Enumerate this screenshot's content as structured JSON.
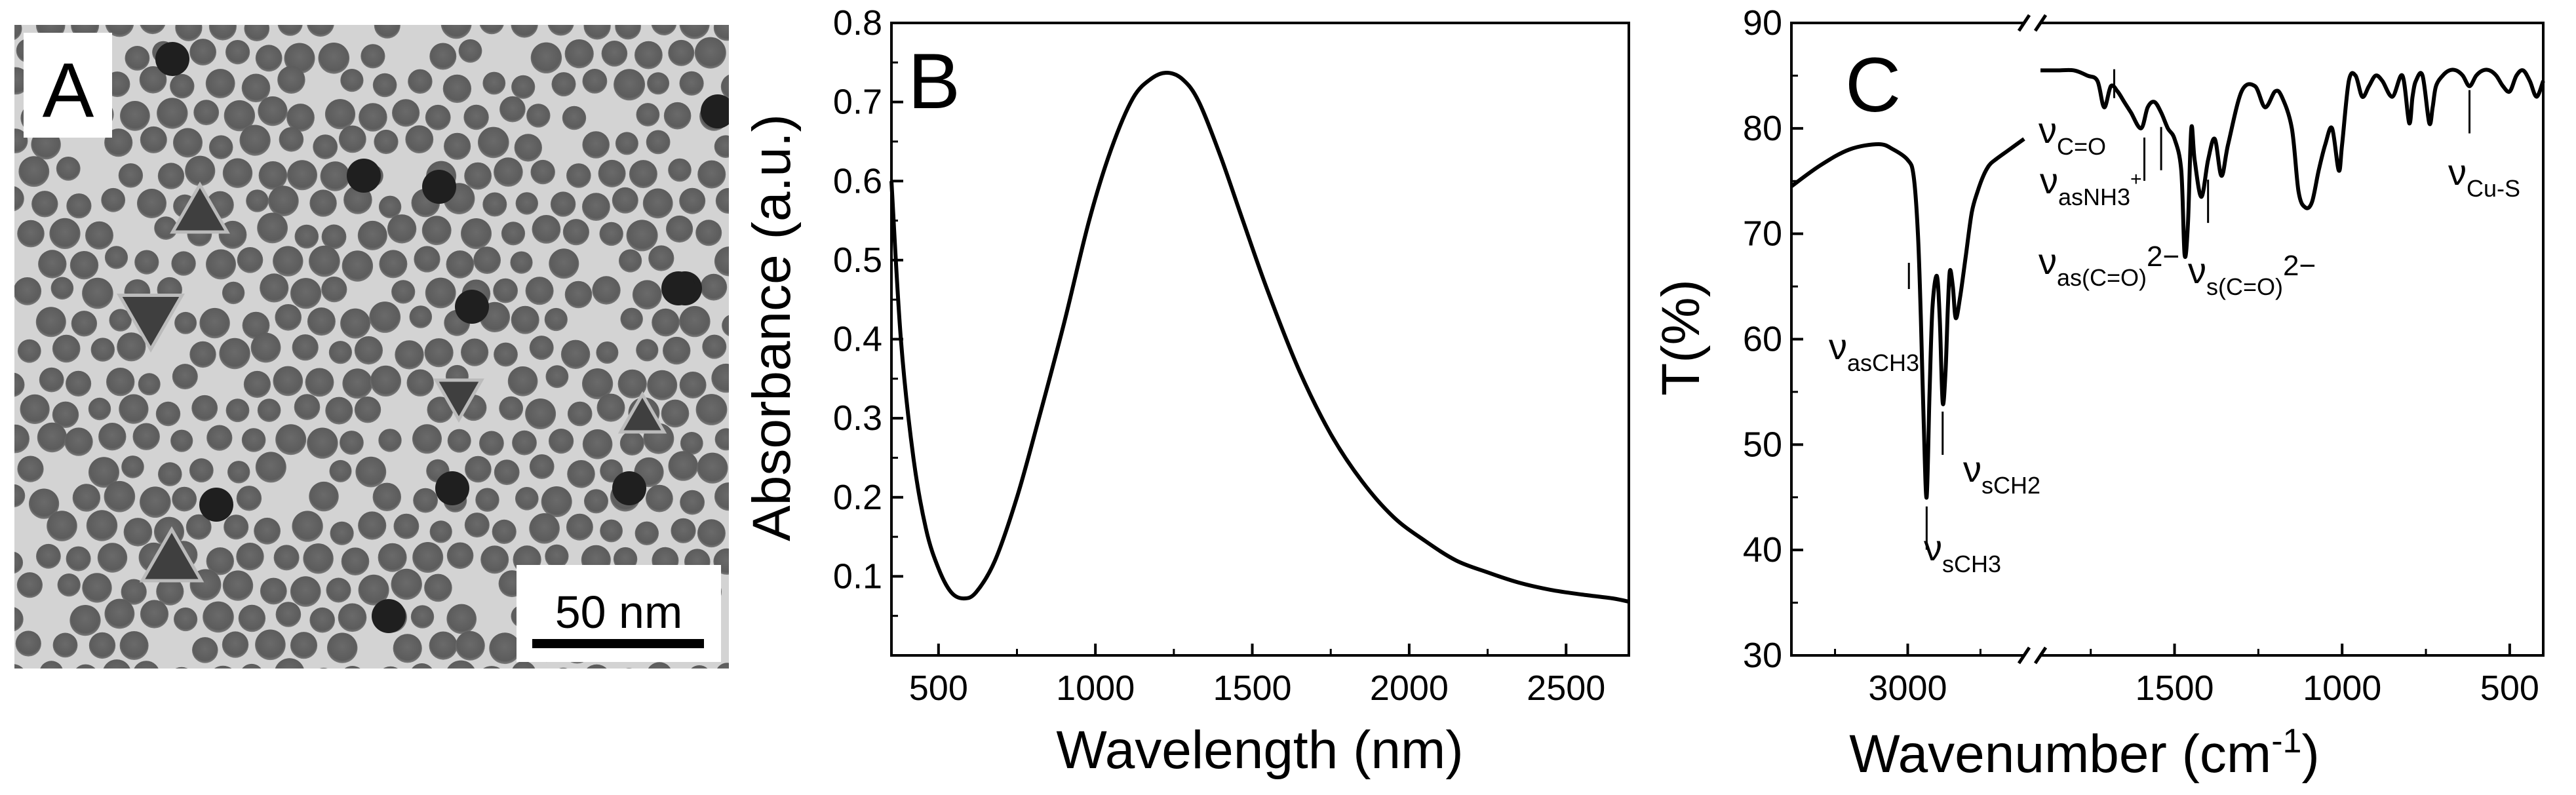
{
  "panels": {
    "a": {
      "label": "A",
      "scale_bar": "50 nm"
    },
    "b": {
      "label": "B"
    },
    "c": {
      "label": "C"
    }
  },
  "chart_data": [
    {
      "type": "line",
      "panel": "B",
      "title": "",
      "xlabel": "Wavelength (nm)",
      "ylabel": "Absorbance (a.u.)",
      "xlim": [
        350,
        2700
      ],
      "ylim": [
        0.0,
        0.8
      ],
      "xticks": [
        500,
        1000,
        1500,
        2000,
        2500
      ],
      "xtick_labels": [
        "500",
        "1000",
        "1500",
        "2000",
        "2500"
      ],
      "yticks": [
        0.1,
        0.2,
        0.3,
        0.4,
        0.5,
        0.6,
        0.7,
        0.8
      ],
      "ytick_labels": [
        "0.1",
        "0.2",
        "0.3",
        "0.4",
        "0.5",
        "0.6",
        "0.7",
        "0.8"
      ],
      "grid": false,
      "series": [
        {
          "name": "absorbance",
          "x": [
            350,
            380,
            420,
            460,
            500,
            540,
            580,
            620,
            680,
            750,
            820,
            900,
            980,
            1050,
            1120,
            1180,
            1230,
            1280,
            1330,
            1400,
            1470,
            1550,
            1650,
            1750,
            1850,
            1950,
            2050,
            2150,
            2250,
            2350,
            2450,
            2550,
            2650,
            2700
          ],
          "y": [
            0.6,
            0.4,
            0.25,
            0.16,
            0.11,
            0.08,
            0.072,
            0.08,
            0.12,
            0.2,
            0.3,
            0.42,
            0.55,
            0.64,
            0.705,
            0.73,
            0.737,
            0.728,
            0.7,
            0.63,
            0.55,
            0.46,
            0.36,
            0.28,
            0.22,
            0.175,
            0.145,
            0.12,
            0.105,
            0.092,
            0.083,
            0.077,
            0.072,
            0.068
          ]
        }
      ]
    },
    {
      "type": "line",
      "panel": "C",
      "title": "",
      "xlabel": "Wavenumber (cm-1)",
      "xlabel_main": "Wavenumber (cm",
      "xlabel_sup": "-1",
      "xlabel_close": ")",
      "ylabel": "T(%)",
      "ylim": [
        30,
        90
      ],
      "x_reversed": true,
      "axis_break": true,
      "yticks": [
        30,
        40,
        50,
        60,
        70,
        80,
        90
      ],
      "ytick_labels": [
        "30",
        "40",
        "50",
        "60",
        "70",
        "80",
        "90"
      ],
      "segments": [
        {
          "xlim": [
            3400,
            2600
          ],
          "xticks": [
            3000
          ],
          "xtick_labels": [
            "3000"
          ],
          "x": [
            3400,
            3300,
            3200,
            3100,
            3050,
            3000,
            2980,
            2965,
            2955,
            2945,
            2935,
            2925,
            2915,
            2900,
            2890,
            2880,
            2870,
            2862,
            2855,
            2845,
            2835,
            2820,
            2800,
            2780,
            2760,
            2740,
            2720,
            2700,
            2650,
            2600
          ],
          "y": [
            74.5,
            76.5,
            78.0,
            78.5,
            78.0,
            77.0,
            75.5,
            70.0,
            62.0,
            52.0,
            45.0,
            55.0,
            63.0,
            66.0,
            62.0,
            54.0,
            57.0,
            63.0,
            66.5,
            65.0,
            62.0,
            64.0,
            68.0,
            72.0,
            74.0,
            75.5,
            76.5,
            77.0,
            78.0,
            79.0
          ]
        },
        {
          "xlim": [
            1900,
            400
          ],
          "xticks": [
            1500,
            1000,
            500
          ],
          "xtick_labels": [
            "1500",
            "1000",
            "500"
          ],
          "x": [
            1900,
            1850,
            1800,
            1760,
            1730,
            1710,
            1690,
            1670,
            1650,
            1630,
            1600,
            1580,
            1560,
            1540,
            1520,
            1500,
            1480,
            1470,
            1460,
            1450,
            1440,
            1420,
            1400,
            1380,
            1360,
            1340,
            1300,
            1260,
            1230,
            1200,
            1180,
            1150,
            1130,
            1110,
            1090,
            1070,
            1050,
            1030,
            1010,
            1000,
            980,
            960,
            940,
            920,
            900,
            880,
            850,
            820,
            800,
            790,
            780,
            760,
            740,
            730,
            720,
            700,
            680,
            660,
            640,
            620,
            600,
            580,
            560,
            540,
            520,
            500,
            480,
            460,
            440,
            420,
            400
          ],
          "y": [
            85.5,
            85.5,
            85.5,
            85.0,
            84.5,
            82.0,
            84.0,
            83.5,
            82.5,
            81.5,
            80.0,
            82.0,
            82.5,
            81.5,
            80.0,
            79.0,
            76.0,
            68.0,
            71.0,
            80.0,
            77.0,
            73.5,
            77.0,
            79.0,
            75.5,
            78.5,
            83.5,
            84.0,
            82.0,
            83.5,
            83.0,
            80.0,
            74.0,
            72.5,
            73.0,
            76.0,
            78.5,
            80.0,
            76.0,
            78.5,
            84.5,
            85.0,
            83.0,
            84.0,
            85.0,
            84.5,
            83.0,
            85.0,
            80.5,
            83.0,
            84.5,
            85.0,
            80.5,
            82.0,
            84.0,
            85.0,
            85.5,
            85.5,
            85.0,
            84.0,
            85.0,
            85.5,
            85.5,
            85.0,
            84.0,
            83.5,
            85.0,
            85.5,
            84.5,
            83.0,
            84.5
          ]
        }
      ],
      "annotations": [
        {
          "id": "c-o",
          "main": "ν",
          "sub": "C=O",
          "sup": "",
          "x": 1680,
          "y": 82.0,
          "line": "up"
        },
        {
          "id": "asnh3",
          "main": "ν",
          "sub": "asNH3",
          "sup": "+",
          "x": 1590,
          "y": 80.0,
          "line": "down"
        },
        {
          "id": "ascoo",
          "main": "ν",
          "sub": "as(C=O)",
          "sup": "2−",
          "x": 1540,
          "y": 81.0,
          "line": "down"
        },
        {
          "id": "scoo",
          "main": "ν",
          "sub": "s(C=O)",
          "sup": "2−",
          "x": 1400,
          "y": 76.0,
          "line": "down"
        },
        {
          "id": "cus",
          "main": "ν",
          "sub": "Cu-S",
          "sup": "",
          "x": 620,
          "y": 84.5,
          "line": "down"
        },
        {
          "id": "asch3",
          "main": "ν",
          "sub": "asCH3",
          "sup": "",
          "x": 2960,
          "y": 66.0,
          "line": "left"
        },
        {
          "id": "sch2",
          "main": "ν",
          "sub": "sCH2",
          "sup": "",
          "x": 2880,
          "y": 54.0,
          "line": "down"
        },
        {
          "id": "sch3",
          "main": "ν",
          "sub": "sCH3",
          "sup": "",
          "x": 2935,
          "y": 45.0,
          "line": "down"
        }
      ]
    }
  ]
}
